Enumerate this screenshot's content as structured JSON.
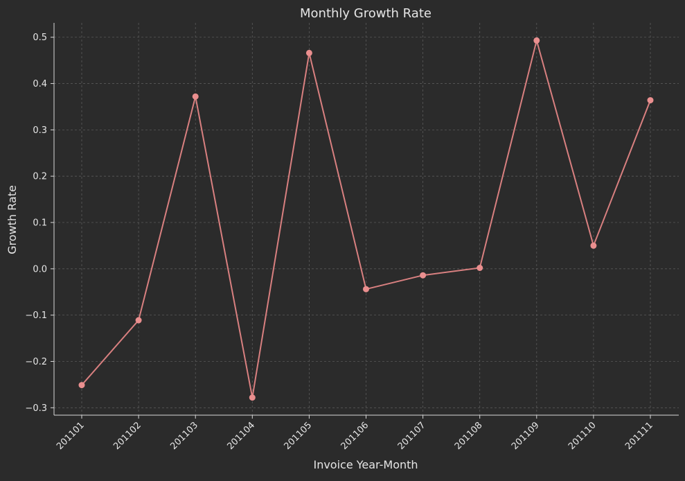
{
  "colors": {
    "background": "#2b2b2b",
    "line": "#d98080",
    "marker": "#ea8f8f",
    "grid": "#5a5a5a",
    "axis": "#d8d8d8",
    "text": "#e6e6e6"
  },
  "chart_data": {
    "type": "line",
    "title": "Monthly Growth Rate",
    "xlabel": "Invoice Year-Month",
    "ylabel": "Growth Rate",
    "categories": [
      "201101",
      "201102",
      "201103",
      "201104",
      "201105",
      "201106",
      "201107",
      "201108",
      "201109",
      "201110",
      "201111"
    ],
    "values": [
      -0.251,
      -0.111,
      0.372,
      -0.278,
      0.466,
      -0.044,
      -0.014,
      0.002,
      0.493,
      0.05,
      0.364
    ],
    "ylim": [
      -0.316,
      0.531
    ],
    "yticks": [
      -0.3,
      -0.2,
      -0.1,
      0.0,
      0.1,
      0.2,
      0.3,
      0.4,
      0.5
    ],
    "ytick_labels": [
      "−0.3",
      "−0.2",
      "−0.1",
      "0.0",
      "0.1",
      "0.2",
      "0.3",
      "0.4",
      "0.5"
    ],
    "grid": true,
    "marker": "circle",
    "legend": "none"
  }
}
